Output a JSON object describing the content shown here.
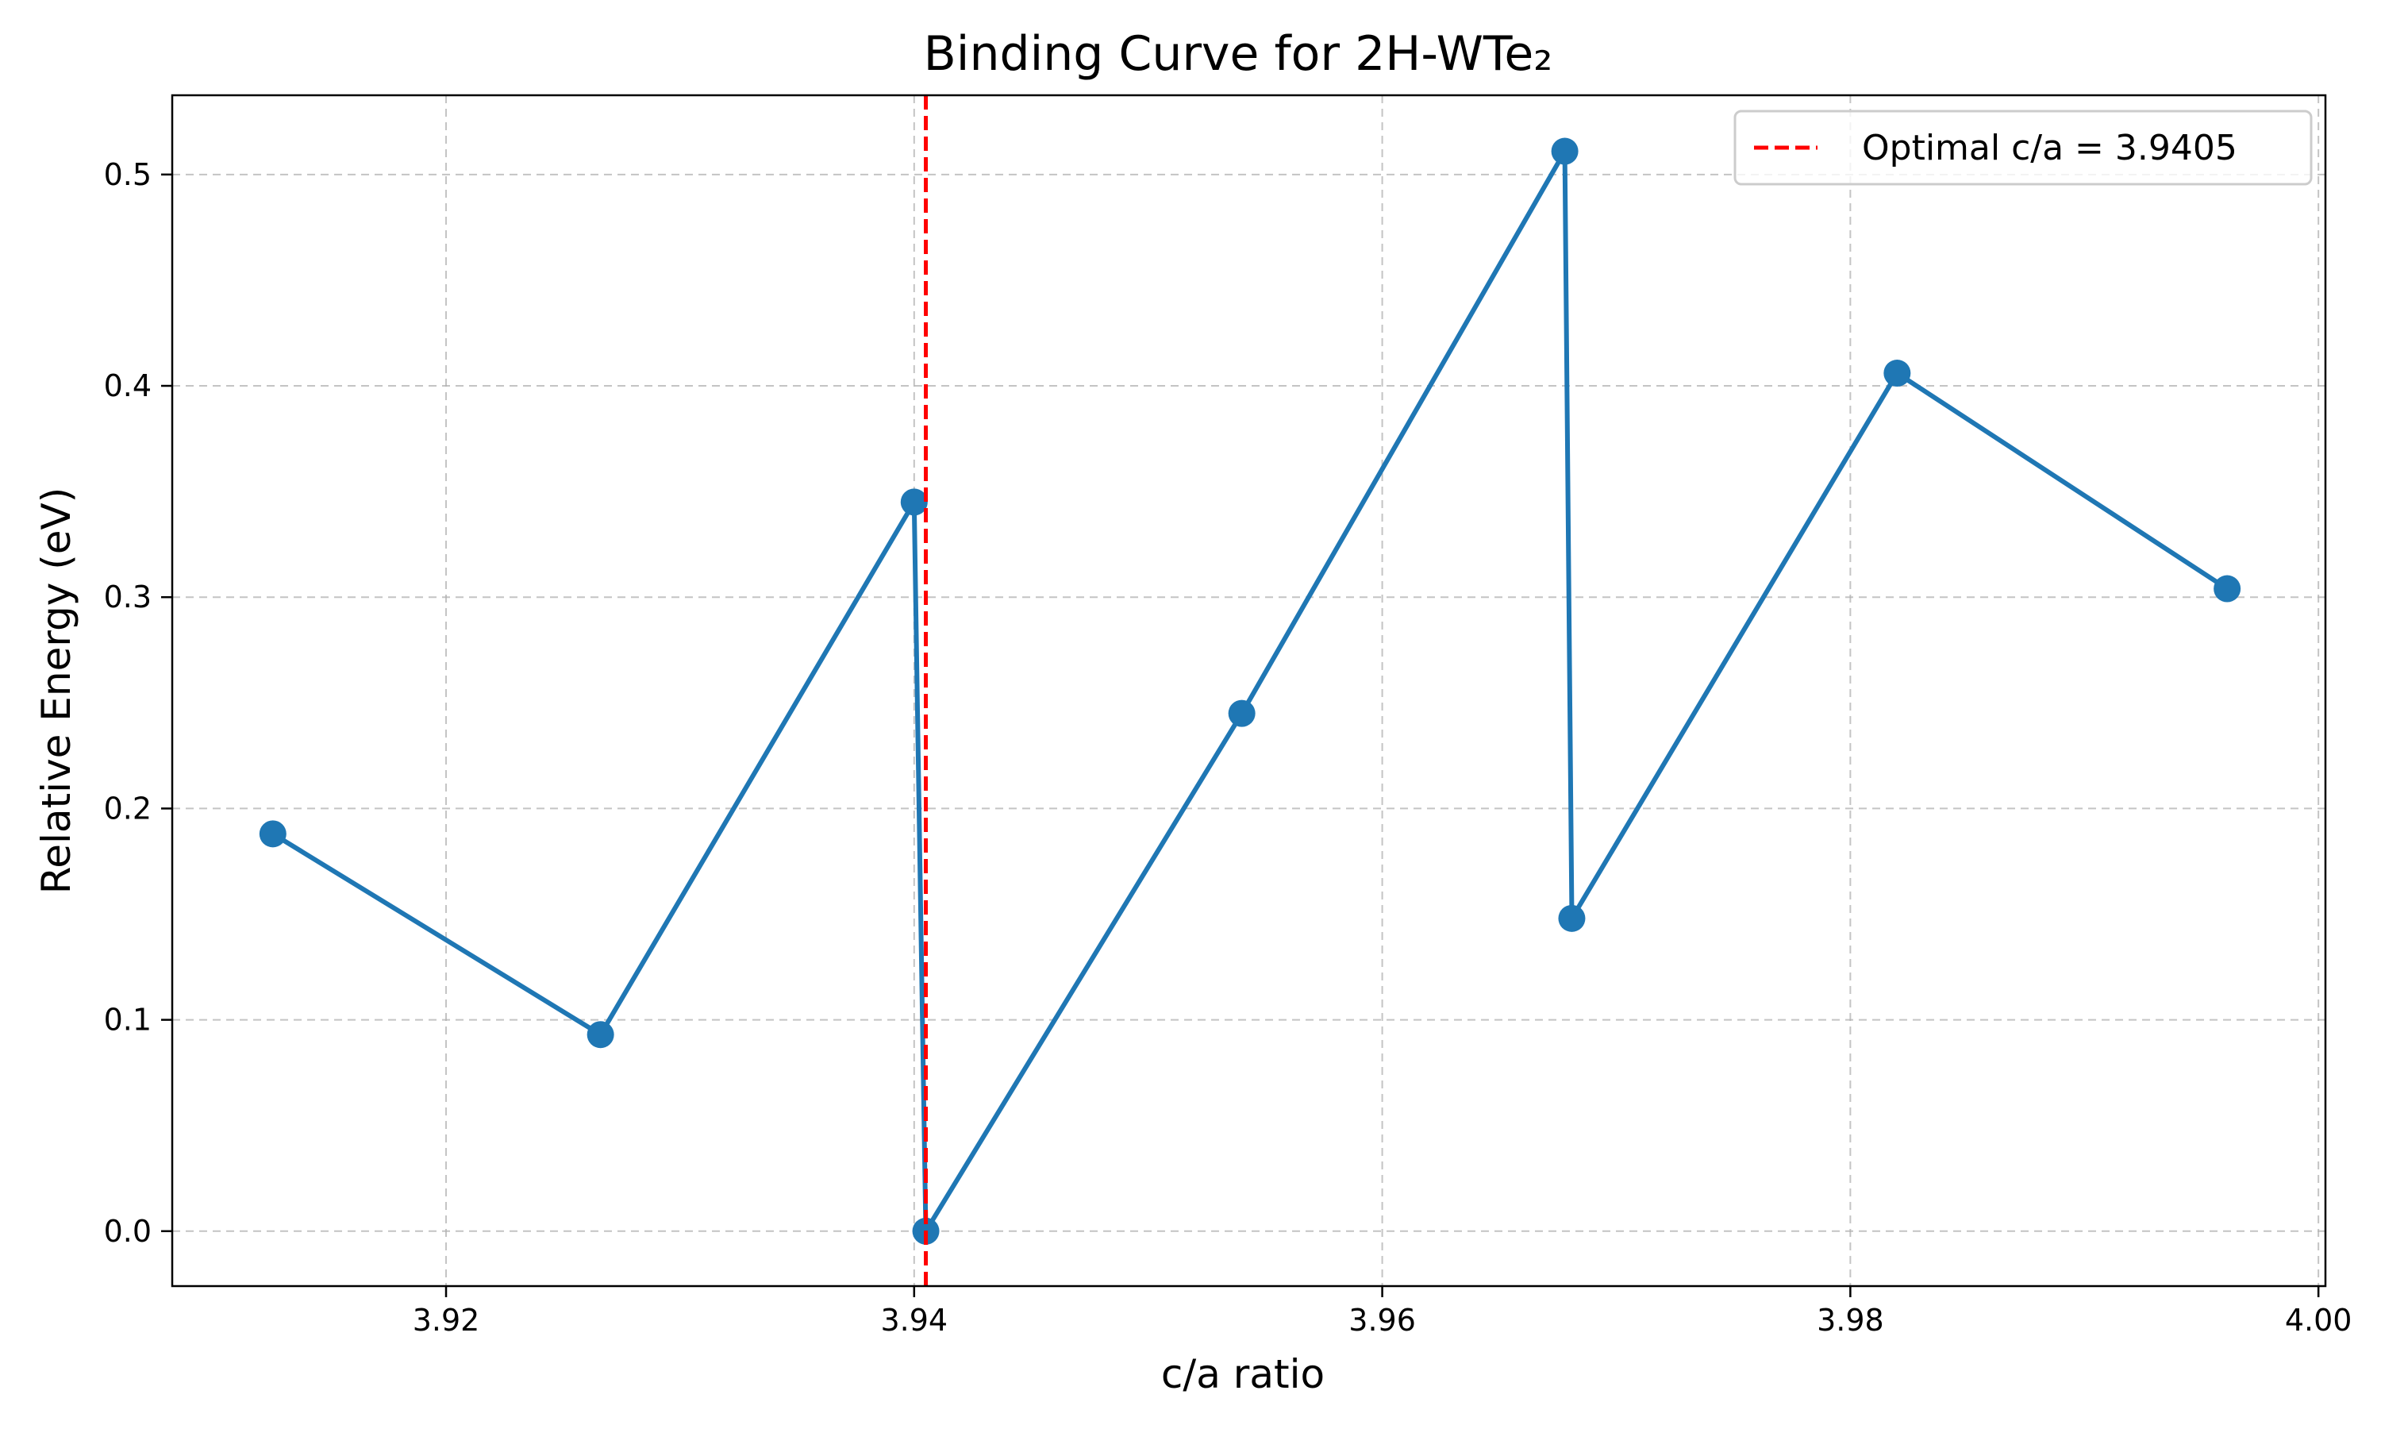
{
  "chart_data": {
    "type": "line",
    "title": "Binding Curve for 2H-WTe₂",
    "xlabel": "c/a ratio",
    "ylabel": "Relative Energy (eV)",
    "xlim": [
      3.9083,
      4.0003
    ],
    "ylim": [
      -0.026,
      0.5375
    ],
    "grid": true,
    "grid_style": "dashed",
    "legend_position": "top-right",
    "x_ticks": [
      3.92,
      3.94,
      3.96,
      3.98,
      4.0
    ],
    "x_tick_labels": [
      "3.92",
      "3.94",
      "3.96",
      "3.98",
      "4.00"
    ],
    "y_ticks": [
      0.0,
      0.1,
      0.2,
      0.3,
      0.4,
      0.5
    ],
    "y_tick_labels": [
      "0.0",
      "0.1",
      "0.2",
      "0.3",
      "0.4",
      "0.5"
    ],
    "series": [
      {
        "color": "#1f77b4",
        "x": [
          3.9126,
          3.9266,
          3.94,
          3.9405,
          3.954,
          3.9678,
          3.9681,
          3.982,
          3.9961
        ],
        "y": [
          0.188,
          0.093,
          0.345,
          0.0,
          0.245,
          0.511,
          0.148,
          0.406,
          0.304
        ]
      }
    ],
    "reference_line": {
      "orientation": "vertical",
      "x": 3.9405,
      "color": "#ff0000",
      "style": "dashed",
      "label": "Optimal c/a = 3.9405"
    }
  }
}
